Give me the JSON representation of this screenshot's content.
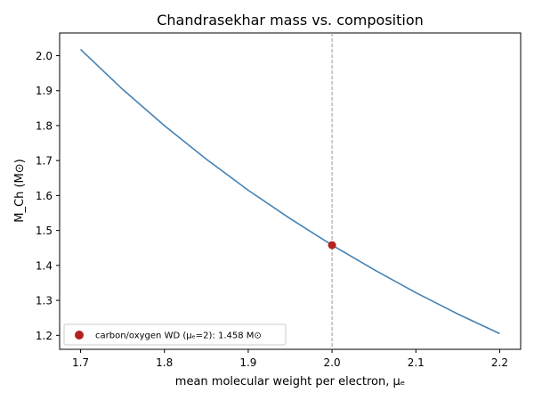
{
  "chart_data": {
    "type": "line",
    "title": "Chandrasekhar mass vs. composition",
    "xlabel": "mean molecular weight per electron, μₑ",
    "ylabel": "M_Ch (M⊙)",
    "xlim": [
      1.675,
      2.225
    ],
    "ylim": [
      1.16,
      2.065
    ],
    "xticks": [
      1.7,
      1.8,
      1.9,
      2.0,
      2.1,
      2.2
    ],
    "xtick_labels": [
      "1.7",
      "1.8",
      "1.9",
      "2.0",
      "2.1",
      "2.2"
    ],
    "yticks": [
      1.2,
      1.3,
      1.4,
      1.5,
      1.6,
      1.7,
      1.8,
      1.9,
      2.0
    ],
    "ytick_labels": [
      "1.2",
      "1.3",
      "1.4",
      "1.5",
      "1.6",
      "1.7",
      "1.8",
      "1.9",
      "2.0"
    ],
    "grid": false,
    "series": [
      {
        "color": "#4682b4",
        "x": [
          1.7,
          1.75,
          1.8,
          1.85,
          1.9,
          1.95,
          2.0,
          2.05,
          2.1,
          2.15,
          2.2
        ],
        "y": [
          2.018,
          1.904,
          1.8,
          1.704,
          1.615,
          1.534,
          1.458,
          1.388,
          1.322,
          1.261,
          1.205
        ]
      }
    ],
    "reference_line": {
      "x": 2.0,
      "style": "dashed",
      "color": "#999999"
    },
    "highlight_point": {
      "x": 2.0,
      "y": 1.458,
      "color": "#b22222"
    },
    "legend": {
      "placement": "lower-left",
      "label": "carbon/oxygen WD (μₑ=2): 1.458 M⊙"
    }
  }
}
